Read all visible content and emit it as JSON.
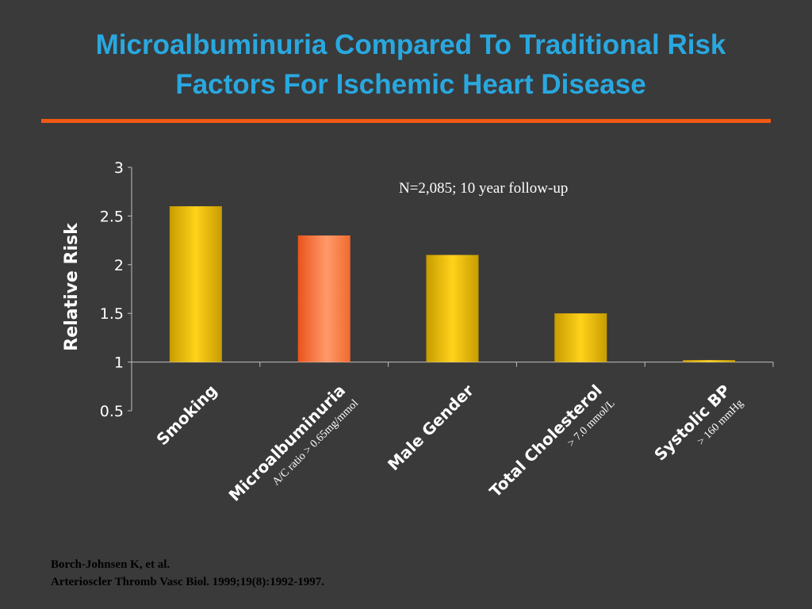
{
  "slide": {
    "title_line1": "Microalbuminuria Compared To Traditional Risk",
    "title_line2": "Factors For Ischemic Heart Disease",
    "citation_line1": "Borch-Johnsen K, et al.",
    "citation_line2": "Arterioscler Thromb Vasc Biol. 1999;19(8):1992-1997.",
    "colors": {
      "background": "#3a3a3a",
      "title": "#29a8e0",
      "rule": "#f05a12",
      "bar_gold": "#f2c200",
      "bar_orange": "#ff6a2b"
    }
  },
  "chart_data": {
    "type": "bar",
    "title": "",
    "xlabel": "",
    "ylabel": "Relative Risk",
    "annotation": "N=2,085; 10 year follow-up",
    "ylim": [
      0.5,
      3
    ],
    "baseline": 1,
    "yticks": [
      "0.5",
      "1",
      "1.5",
      "2",
      "2.5",
      "3"
    ],
    "grid": false,
    "categories": [
      "Smoking",
      "Microalbuminuria",
      "Male Gender",
      "Total Cholesterol",
      "Systolic BP"
    ],
    "sublabels": [
      "",
      "A/C ratio > 0.65mg/mmol",
      "",
      "> 7.0 mmol/L",
      "> 160 mmHg"
    ],
    "values": [
      2.6,
      2.3,
      2.1,
      1.5,
      1.02
    ],
    "bar_colors": [
      "gold",
      "orange",
      "gold",
      "gold",
      "gold"
    ]
  }
}
